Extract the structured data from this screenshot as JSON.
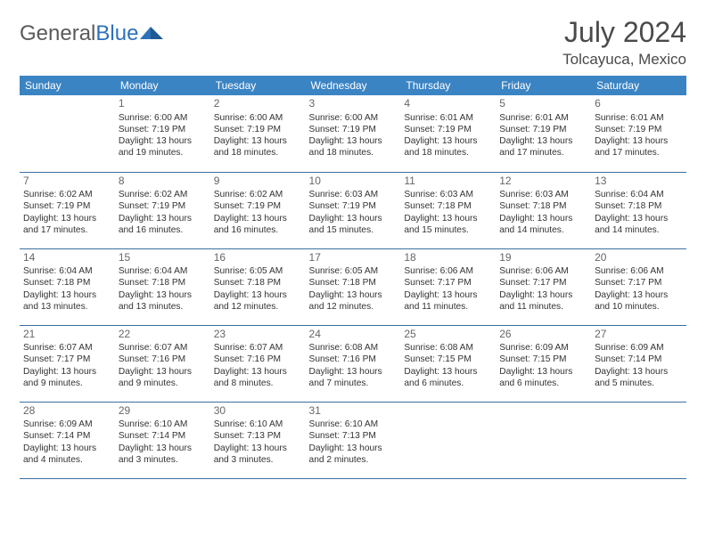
{
  "logo": {
    "part1": "General",
    "part2": "Blue"
  },
  "title": "July 2024",
  "location": "Tolcayuca, Mexico",
  "colors": {
    "header_bg": "#3b84c4",
    "header_text": "#ffffff",
    "row_border": "#3b6fa0",
    "logo_gray": "#5a5a5a",
    "logo_blue": "#2d71b8",
    "title_color": "#4a4a4a"
  },
  "weekdays": [
    "Sunday",
    "Monday",
    "Tuesday",
    "Wednesday",
    "Thursday",
    "Friday",
    "Saturday"
  ],
  "grid": [
    [
      null,
      {
        "n": "1",
        "sr": "6:00 AM",
        "ss": "7:19 PM",
        "dl": "13 hours and 19 minutes."
      },
      {
        "n": "2",
        "sr": "6:00 AM",
        "ss": "7:19 PM",
        "dl": "13 hours and 18 minutes."
      },
      {
        "n": "3",
        "sr": "6:00 AM",
        "ss": "7:19 PM",
        "dl": "13 hours and 18 minutes."
      },
      {
        "n": "4",
        "sr": "6:01 AM",
        "ss": "7:19 PM",
        "dl": "13 hours and 18 minutes."
      },
      {
        "n": "5",
        "sr": "6:01 AM",
        "ss": "7:19 PM",
        "dl": "13 hours and 17 minutes."
      },
      {
        "n": "6",
        "sr": "6:01 AM",
        "ss": "7:19 PM",
        "dl": "13 hours and 17 minutes."
      }
    ],
    [
      {
        "n": "7",
        "sr": "6:02 AM",
        "ss": "7:19 PM",
        "dl": "13 hours and 17 minutes."
      },
      {
        "n": "8",
        "sr": "6:02 AM",
        "ss": "7:19 PM",
        "dl": "13 hours and 16 minutes."
      },
      {
        "n": "9",
        "sr": "6:02 AM",
        "ss": "7:19 PM",
        "dl": "13 hours and 16 minutes."
      },
      {
        "n": "10",
        "sr": "6:03 AM",
        "ss": "7:19 PM",
        "dl": "13 hours and 15 minutes."
      },
      {
        "n": "11",
        "sr": "6:03 AM",
        "ss": "7:18 PM",
        "dl": "13 hours and 15 minutes."
      },
      {
        "n": "12",
        "sr": "6:03 AM",
        "ss": "7:18 PM",
        "dl": "13 hours and 14 minutes."
      },
      {
        "n": "13",
        "sr": "6:04 AM",
        "ss": "7:18 PM",
        "dl": "13 hours and 14 minutes."
      }
    ],
    [
      {
        "n": "14",
        "sr": "6:04 AM",
        "ss": "7:18 PM",
        "dl": "13 hours and 13 minutes."
      },
      {
        "n": "15",
        "sr": "6:04 AM",
        "ss": "7:18 PM",
        "dl": "13 hours and 13 minutes."
      },
      {
        "n": "16",
        "sr": "6:05 AM",
        "ss": "7:18 PM",
        "dl": "13 hours and 12 minutes."
      },
      {
        "n": "17",
        "sr": "6:05 AM",
        "ss": "7:18 PM",
        "dl": "13 hours and 12 minutes."
      },
      {
        "n": "18",
        "sr": "6:06 AM",
        "ss": "7:17 PM",
        "dl": "13 hours and 11 minutes."
      },
      {
        "n": "19",
        "sr": "6:06 AM",
        "ss": "7:17 PM",
        "dl": "13 hours and 11 minutes."
      },
      {
        "n": "20",
        "sr": "6:06 AM",
        "ss": "7:17 PM",
        "dl": "13 hours and 10 minutes."
      }
    ],
    [
      {
        "n": "21",
        "sr": "6:07 AM",
        "ss": "7:17 PM",
        "dl": "13 hours and 9 minutes."
      },
      {
        "n": "22",
        "sr": "6:07 AM",
        "ss": "7:16 PM",
        "dl": "13 hours and 9 minutes."
      },
      {
        "n": "23",
        "sr": "6:07 AM",
        "ss": "7:16 PM",
        "dl": "13 hours and 8 minutes."
      },
      {
        "n": "24",
        "sr": "6:08 AM",
        "ss": "7:16 PM",
        "dl": "13 hours and 7 minutes."
      },
      {
        "n": "25",
        "sr": "6:08 AM",
        "ss": "7:15 PM",
        "dl": "13 hours and 6 minutes."
      },
      {
        "n": "26",
        "sr": "6:09 AM",
        "ss": "7:15 PM",
        "dl": "13 hours and 6 minutes."
      },
      {
        "n": "27",
        "sr": "6:09 AM",
        "ss": "7:14 PM",
        "dl": "13 hours and 5 minutes."
      }
    ],
    [
      {
        "n": "28",
        "sr": "6:09 AM",
        "ss": "7:14 PM",
        "dl": "13 hours and 4 minutes."
      },
      {
        "n": "29",
        "sr": "6:10 AM",
        "ss": "7:14 PM",
        "dl": "13 hours and 3 minutes."
      },
      {
        "n": "30",
        "sr": "6:10 AM",
        "ss": "7:13 PM",
        "dl": "13 hours and 3 minutes."
      },
      {
        "n": "31",
        "sr": "6:10 AM",
        "ss": "7:13 PM",
        "dl": "13 hours and 2 minutes."
      },
      null,
      null,
      null
    ]
  ],
  "labels": {
    "sunrise": "Sunrise:",
    "sunset": "Sunset:",
    "daylight": "Daylight:"
  }
}
